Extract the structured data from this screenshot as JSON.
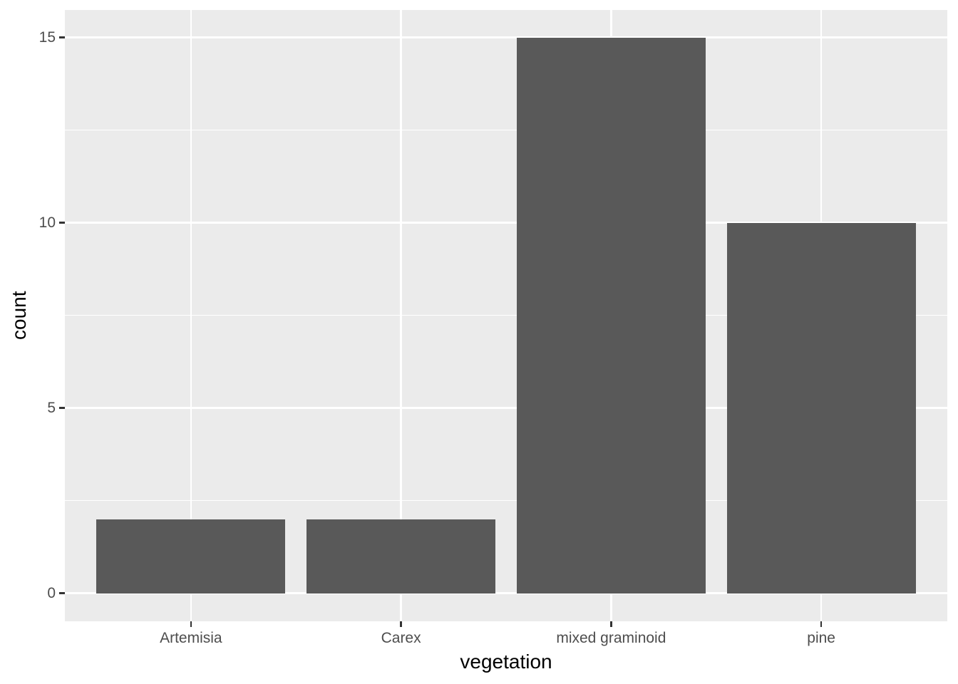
{
  "chart_data": {
    "type": "bar",
    "title": "",
    "categories": [
      "Artemisia",
      "Carex",
      "mixed graminoid",
      "pine"
    ],
    "values": [
      2,
      2,
      15,
      10
    ],
    "xlabel": "vegetation",
    "ylabel": "count",
    "y_major_ticks": [
      0,
      5,
      10,
      15
    ],
    "y_minor_ticks": [
      2.5,
      7.5,
      12.5
    ],
    "ylim": [
      -0.75,
      15.75
    ],
    "bar_width_units": 0.9,
    "legend": "none",
    "grid": "on",
    "theme": "ggplot-grey",
    "colors": {
      "bar_fill": "#595959",
      "panel_background": "#EBEBEB",
      "gridline": "#FFFFFF",
      "tick_mark": "#333333",
      "tick_label": "#4D4D4D",
      "axis_title": "#000000",
      "plot_background": "#FFFFFF"
    }
  }
}
